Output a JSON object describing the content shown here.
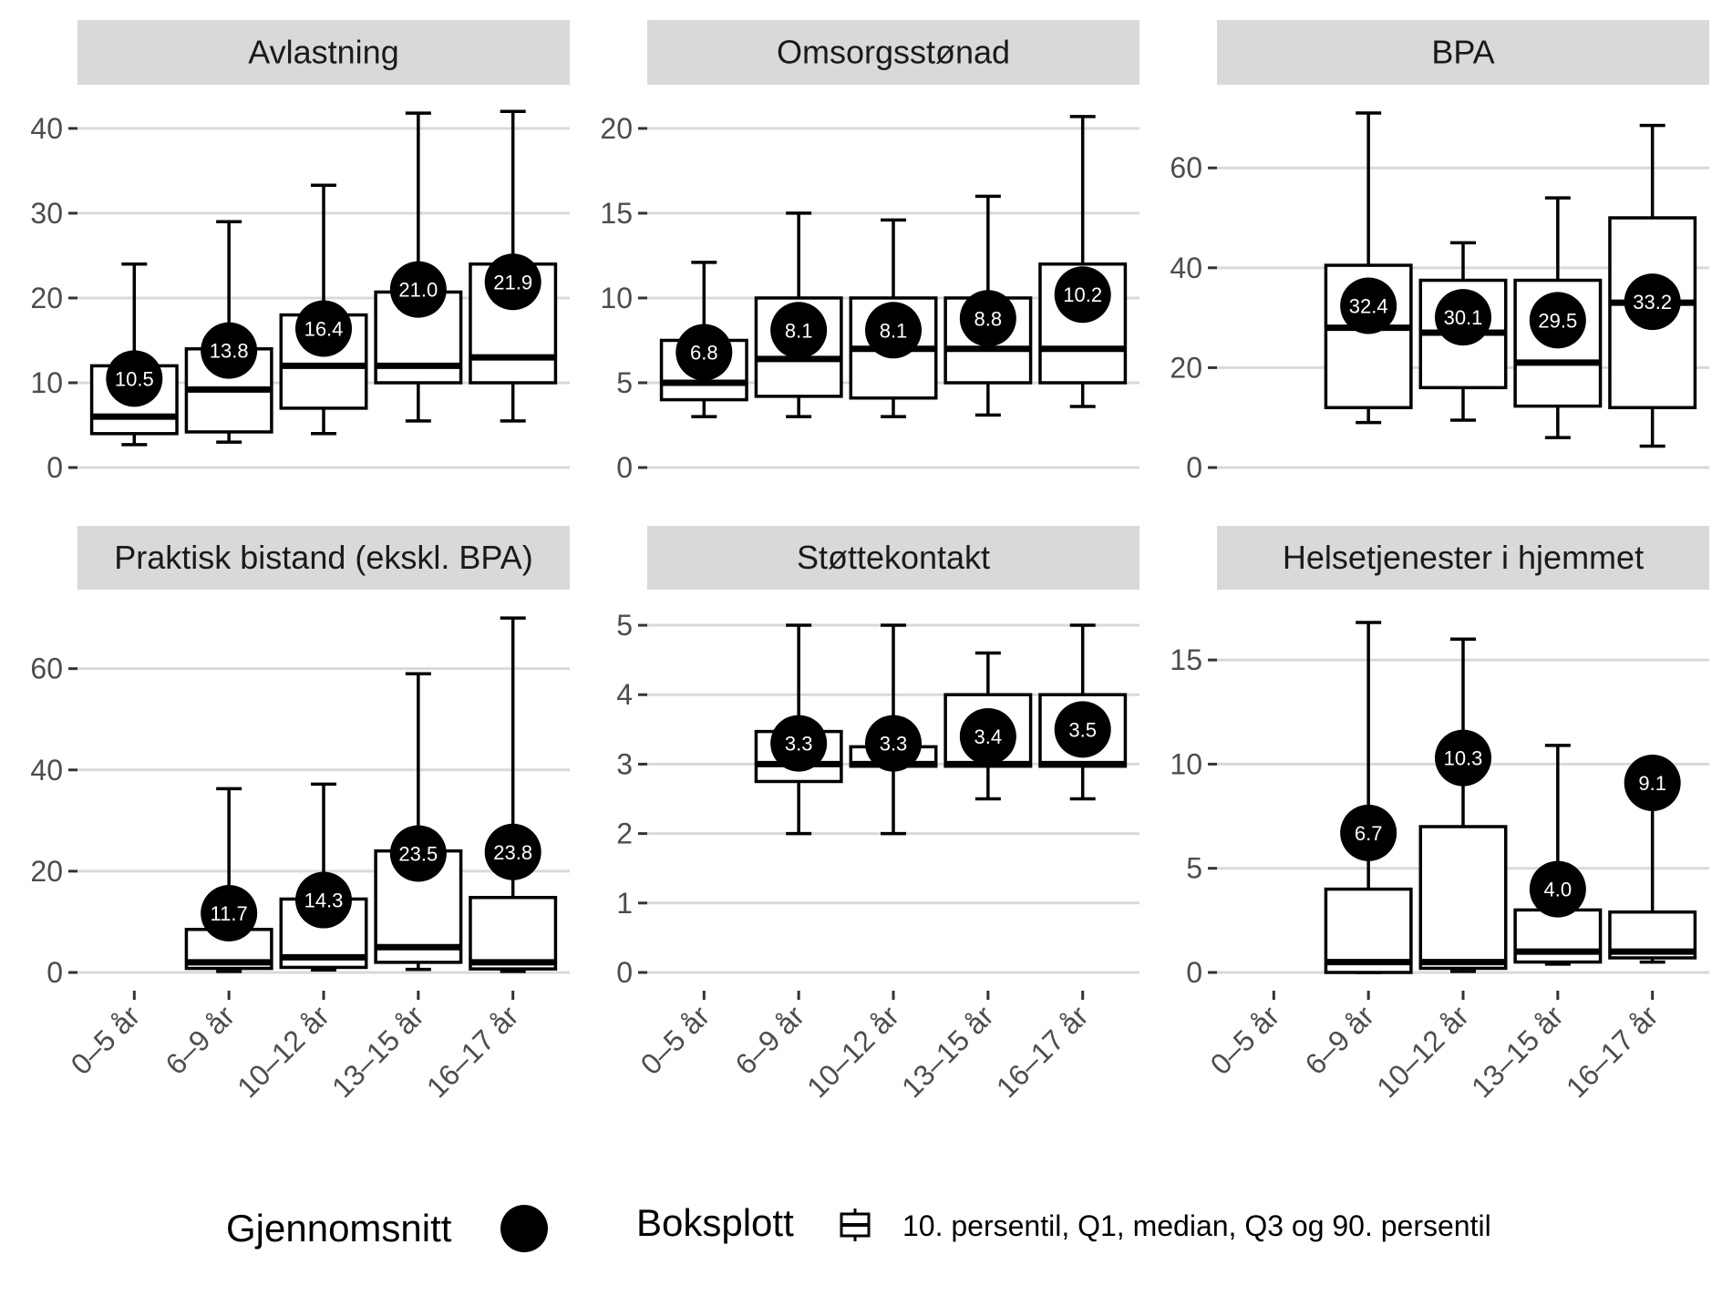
{
  "chart_data": {
    "type": "boxplot",
    "categories": [
      "0–5 år",
      "6–9 år",
      "10–12 år",
      "13–15 år",
      "16–17 år"
    ],
    "legend": {
      "mean_title": "Gjennomsnitt",
      "box_title": "Boksplott",
      "box_label": "10. persentil, Q1, median, Q3 og 90. persentil"
    },
    "panels": [
      {
        "title": "Avlastning",
        "ylim": [
          0,
          43
        ],
        "yticks": [
          0,
          10,
          20,
          30,
          40
        ],
        "boxes": [
          {
            "category": "0–5 år",
            "p10": 2.7,
            "q1": 4,
            "median": 6,
            "q3": 12,
            "p90": 24,
            "mean": 10.5,
            "mean_label": "10.5"
          },
          {
            "category": "6–9 år",
            "p10": 3,
            "q1": 4.2,
            "median": 9.2,
            "q3": 14,
            "p90": 29,
            "mean": 13.8,
            "mean_label": "13.8"
          },
          {
            "category": "10–12 år",
            "p10": 4,
            "q1": 7,
            "median": 12,
            "q3": 18,
            "p90": 33.3,
            "mean": 16.4,
            "mean_label": "16.4"
          },
          {
            "category": "13–15 år",
            "p10": 5.5,
            "q1": 10,
            "median": 12,
            "q3": 20.7,
            "p90": 41.8,
            "mean": 21.0,
            "mean_label": "21.0"
          },
          {
            "category": "16–17 år",
            "p10": 5.5,
            "q1": 10,
            "median": 13,
            "q3": 24,
            "p90": 42,
            "mean": 21.9,
            "mean_label": "21.9"
          }
        ]
      },
      {
        "title": "Omsorgsstønad",
        "ylim": [
          0,
          21.5
        ],
        "yticks": [
          0,
          5,
          10,
          15,
          20
        ],
        "boxes": [
          {
            "category": "0–5 år",
            "p10": 3,
            "q1": 4,
            "median": 5,
            "q3": 7.5,
            "p90": 12.1,
            "mean": 6.8,
            "mean_label": "6.8"
          },
          {
            "category": "6–9 år",
            "p10": 3,
            "q1": 4.2,
            "median": 6.4,
            "q3": 10,
            "p90": 15,
            "mean": 8.1,
            "mean_label": "8.1"
          },
          {
            "category": "10–12 år",
            "p10": 3,
            "q1": 4.1,
            "median": 7,
            "q3": 10,
            "p90": 14.6,
            "mean": 8.1,
            "mean_label": "8.1"
          },
          {
            "category": "13–15 år",
            "p10": 3.1,
            "q1": 5,
            "median": 7,
            "q3": 10,
            "p90": 16,
            "mean": 8.8,
            "mean_label": "8.8"
          },
          {
            "category": "16–17 år",
            "p10": 3.6,
            "q1": 5,
            "median": 7,
            "q3": 12,
            "p90": 20.7,
            "mean": 10.2,
            "mean_label": "10.2"
          }
        ]
      },
      {
        "title": "BPA",
        "ylim": [
          0,
          73
        ],
        "yticks": [
          0,
          20,
          40,
          60
        ],
        "boxes": [
          {
            "category": "6–9 år",
            "p10": 9,
            "q1": 12,
            "median": 28,
            "q3": 40.5,
            "p90": 71,
            "mean": 32.4,
            "mean_label": "32.4"
          },
          {
            "category": "10–12 år",
            "p10": 9.5,
            "q1": 16,
            "median": 27,
            "q3": 37.5,
            "p90": 45,
            "mean": 30.1,
            "mean_label": "30.1"
          },
          {
            "category": "13–15 år",
            "p10": 6,
            "q1": 12.3,
            "median": 21,
            "q3": 37.5,
            "p90": 54,
            "mean": 29.5,
            "mean_label": "29.5"
          },
          {
            "category": "16–17 år",
            "p10": 4.3,
            "q1": 12,
            "median": 33,
            "q3": 50,
            "p90": 68.5,
            "mean": 33.2,
            "mean_label": "33.2"
          }
        ]
      },
      {
        "title": "Praktisk bistand (ekskl. BPA)",
        "ylim": [
          0,
          72
        ],
        "yticks": [
          0,
          20,
          40,
          60
        ],
        "boxes": [
          {
            "category": "6–9 år",
            "p10": 0.2,
            "q1": 0.8,
            "median": 2,
            "q3": 8.5,
            "p90": 36.3,
            "mean": 11.7,
            "mean_label": "11.7"
          },
          {
            "category": "10–12 år",
            "p10": 0.5,
            "q1": 1,
            "median": 3,
            "q3": 14.5,
            "p90": 37.2,
            "mean": 14.3,
            "mean_label": "14.3"
          },
          {
            "category": "13–15 år",
            "p10": 0.6,
            "q1": 2,
            "median": 5,
            "q3": 24,
            "p90": 59,
            "mean": 23.5,
            "mean_label": "23.5"
          },
          {
            "category": "16–17 år",
            "p10": 0.2,
            "q1": 0.7,
            "median": 2,
            "q3": 14.8,
            "p90": 70,
            "mean": 23.8,
            "mean_label": "23.8"
          }
        ]
      },
      {
        "title": "Støttekontakt",
        "ylim": [
          0,
          5.25
        ],
        "yticks": [
          0,
          1,
          2,
          3,
          4,
          5
        ],
        "boxes": [
          {
            "category": "6–9 år",
            "p10": 2,
            "q1": 2.75,
            "median": 3,
            "q3": 3.47,
            "p90": 5,
            "mean": 3.3,
            "mean_label": "3.3"
          },
          {
            "category": "10–12 år",
            "p10": 2,
            "q1": 2.97,
            "median": 3,
            "q3": 3.25,
            "p90": 5,
            "mean": 3.3,
            "mean_label": "3.3"
          },
          {
            "category": "13–15 år",
            "p10": 2.5,
            "q1": 2.97,
            "median": 3,
            "q3": 4,
            "p90": 4.6,
            "mean": 3.4,
            "mean_label": "3.4"
          },
          {
            "category": "16–17 år",
            "p10": 2.5,
            "q1": 2.97,
            "median": 3,
            "q3": 4,
            "p90": 5,
            "mean": 3.5,
            "mean_label": "3.5"
          }
        ]
      },
      {
        "title": "Helsetjenester i hjemmet",
        "ylim": [
          0,
          17.5
        ],
        "yticks": [
          0,
          5,
          10,
          15
        ],
        "boxes": [
          {
            "category": "6–9 år",
            "p10": 0,
            "q1": 0,
            "median": 0.5,
            "q3": 4,
            "p90": 16.8,
            "mean": 6.7,
            "mean_label": "6.7"
          },
          {
            "category": "10–12 år",
            "p10": 0.05,
            "q1": 0.2,
            "median": 0.5,
            "q3": 7,
            "p90": 16,
            "mean": 10.3,
            "mean_label": "10.3"
          },
          {
            "category": "13–15 år",
            "p10": 0.4,
            "q1": 0.5,
            "median": 1,
            "q3": 3,
            "p90": 10.9,
            "mean": 4.0,
            "mean_label": "4.0"
          },
          {
            "category": "16–17 år",
            "p10": 0.5,
            "q1": 0.7,
            "median": 1,
            "q3": 2.9,
            "p90": 9.1,
            "mean": 9.1,
            "mean_label": "9.1"
          }
        ]
      }
    ]
  }
}
